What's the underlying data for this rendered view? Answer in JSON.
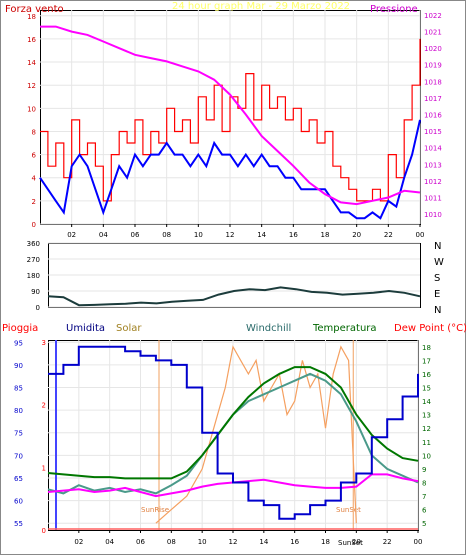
{
  "chart_data": [
    {
      "type": "line",
      "header": {
        "left_label": "Forza vento",
        "center_label": "24 hour graph Mar - 29 Marzo 2022",
        "right_label": "Pressione"
      },
      "x_ticks": [
        "02",
        "04",
        "06",
        "08",
        "10",
        "12",
        "14",
        "16",
        "18",
        "20",
        "22",
        "00"
      ],
      "y_left_ticks": [
        "0",
        "2",
        "4",
        "6",
        "8",
        "10",
        "12",
        "14",
        "16",
        "18"
      ],
      "y_right_ticks": [
        "1010",
        "1011",
        "1012",
        "1013",
        "1014",
        "1015",
        "1016",
        "1017",
        "1018",
        "1019",
        "1020",
        "1021",
        "1022"
      ],
      "ylim_left": [
        0,
        18.5
      ],
      "ylim_right": [
        1009.4,
        1022.3
      ],
      "series": [
        {
          "name": "Forza vento",
          "color": "#ff0000",
          "axis": "left",
          "x": [
            0,
            0.5,
            1,
            1.5,
            2,
            2.5,
            3,
            3.5,
            4,
            4.5,
            5,
            5.5,
            6,
            6.5,
            7,
            7.5,
            8,
            8.5,
            9,
            9.5,
            10,
            10.5,
            11,
            11.5,
            12,
            12.5,
            13,
            13.5,
            14,
            14.5,
            15,
            15.5,
            16,
            16.5,
            17,
            17.5,
            18,
            18.5,
            19,
            19.5,
            20,
            20.5,
            21,
            21.5,
            22,
            22.5,
            23,
            23.5,
            24
          ],
          "values": [
            8,
            5,
            7,
            4,
            9,
            6,
            7,
            5,
            2,
            6,
            8,
            7,
            9,
            6,
            8,
            7,
            10,
            8,
            9,
            7,
            11,
            9,
            12,
            8,
            11,
            10,
            13,
            9,
            12,
            10,
            11,
            9,
            10,
            8,
            9,
            7,
            8,
            5,
            4,
            3,
            2,
            2,
            3,
            2,
            6,
            4,
            9,
            12,
            16
          ]
        },
        {
          "color": "#0000ff",
          "axis": "left",
          "x": [
            0,
            0.5,
            1,
            1.5,
            2,
            2.5,
            3,
            3.5,
            4,
            4.5,
            5,
            5.5,
            6,
            6.5,
            7,
            7.5,
            8,
            8.5,
            9,
            9.5,
            10,
            10.5,
            11,
            11.5,
            12,
            12.5,
            13,
            13.5,
            14,
            14.5,
            15,
            15.5,
            16,
            16.5,
            17,
            17.5,
            18,
            18.5,
            19,
            19.5,
            20,
            20.5,
            21,
            21.5,
            22,
            22.5,
            23,
            23.5,
            24
          ],
          "values": [
            4,
            3,
            2,
            1,
            5,
            6,
            5,
            3,
            1,
            3,
            5,
            4,
            6,
            5,
            6,
            6,
            7,
            6,
            6,
            5,
            6,
            5,
            7,
            6,
            6,
            5,
            6,
            5,
            6,
            5,
            5,
            4,
            4,
            3,
            3,
            3,
            3,
            2,
            1,
            1,
            0.5,
            0.5,
            1,
            0.5,
            2,
            1.5,
            4,
            6,
            9
          ]
        },
        {
          "name": "Pressione",
          "color": "#ff00ff",
          "axis": "right",
          "x": [
            0,
            1,
            2,
            3,
            4,
            5,
            6,
            7,
            8,
            9,
            10,
            11,
            12,
            13,
            14,
            15,
            16,
            17,
            18,
            19,
            20,
            21,
            22,
            23,
            24
          ],
          "values": [
            1021.3,
            1021.3,
            1021.0,
            1020.8,
            1020.4,
            1020.0,
            1019.6,
            1019.4,
            1019.2,
            1018.9,
            1018.6,
            1018.1,
            1017.2,
            1016.0,
            1014.7,
            1013.8,
            1012.9,
            1011.9,
            1011.2,
            1010.7,
            1010.6,
            1010.8,
            1011.0,
            1011.4,
            1011.3
          ]
        }
      ]
    },
    {
      "type": "line",
      "y_ticks": [
        "360",
        "270",
        "180",
        "90",
        "0"
      ],
      "right_labels": [
        "N",
        "W",
        "S",
        "E",
        "N"
      ],
      "ylim": [
        0,
        360
      ],
      "series": [
        {
          "color": "#1c3c3c",
          "x": [
            0,
            1,
            2,
            3,
            4,
            5,
            6,
            7,
            8,
            9,
            10,
            11,
            12,
            13,
            14,
            15,
            16,
            17,
            18,
            19,
            20,
            21,
            22,
            23,
            24
          ],
          "values": [
            60,
            55,
            10,
            12,
            15,
            18,
            25,
            20,
            30,
            35,
            40,
            70,
            90,
            100,
            95,
            110,
            100,
            85,
            80,
            70,
            75,
            80,
            90,
            80,
            60
          ]
        }
      ]
    },
    {
      "type": "line",
      "legend": [
        "Pioggia",
        "Umidita",
        "Solar",
        "Windchill",
        "Temperatura",
        "Dew Point (°C)"
      ],
      "x_ticks": [
        "02",
        "04",
        "06",
        "08",
        "10",
        "12",
        "14",
        "16",
        "18",
        "20",
        "22",
        "00"
      ],
      "y_left_ticks": [
        "55",
        "60",
        "65",
        "70",
        "75",
        "80",
        "85",
        "90",
        "95"
      ],
      "y_rain_ticks": [
        "0",
        "1",
        "2",
        "3"
      ],
      "y_right_ticks": [
        "5",
        "6",
        "7",
        "8",
        "9",
        "10",
        "11",
        "12",
        "13",
        "14",
        "15",
        "16",
        "17",
        "18"
      ],
      "ylim_left": [
        53.5,
        95.5
      ],
      "ylim_right": [
        4.5,
        18.5
      ],
      "annotations": [
        "SunRise",
        "SunSet",
        "SunSet"
      ],
      "series": [
        {
          "name": "Umidita",
          "color": "#0000cc",
          "axis": "left",
          "x": [
            0,
            1,
            2,
            3,
            4,
            5,
            6,
            7,
            8,
            9,
            10,
            11,
            12,
            13,
            14,
            15,
            16,
            17,
            18,
            19,
            20,
            21,
            22,
            23,
            24
          ],
          "values": [
            88,
            90,
            94,
            94,
            94,
            93,
            92,
            91,
            90,
            85,
            75,
            66,
            64,
            60,
            59,
            56,
            57,
            59,
            60,
            64,
            66,
            74,
            78,
            83,
            88
          ]
        },
        {
          "name": "Solar",
          "color": "#f5a060",
          "axis": "right",
          "x": [
            7,
            8,
            9,
            10,
            10.5,
            11,
            11.5,
            12,
            12.5,
            13,
            13.5,
            14,
            14.5,
            15,
            15.5,
            16,
            16.5,
            17,
            17.5,
            18,
            18.5,
            19,
            19.5,
            20
          ],
          "values": [
            5,
            6,
            7,
            9,
            11,
            13,
            15,
            18,
            17,
            16,
            17,
            14,
            15,
            16,
            13,
            14,
            17,
            15,
            16,
            12,
            16,
            18,
            17,
            5
          ]
        },
        {
          "name": "Windchill",
          "color": "#4a9a8a",
          "axis": "right",
          "x": [
            0,
            1,
            2,
            3,
            4,
            5,
            6,
            7,
            8,
            9,
            10,
            11,
            12,
            13,
            14,
            15,
            16,
            17,
            18,
            19,
            20,
            21,
            22,
            23,
            24
          ],
          "values": [
            7.5,
            7.2,
            7.8,
            7.4,
            7.6,
            7.3,
            7.5,
            7.2,
            7.8,
            8.5,
            10,
            11.5,
            13,
            14,
            14.5,
            15,
            15.5,
            16,
            15.5,
            14.5,
            12.5,
            10,
            9,
            8.5,
            8
          ]
        },
        {
          "name": "Temperatura",
          "color": "#007700",
          "axis": "right",
          "x": [
            0,
            1,
            2,
            3,
            4,
            5,
            6,
            7,
            8,
            9,
            10,
            11,
            12,
            13,
            14,
            15,
            16,
            17,
            18,
            19,
            20,
            21,
            22,
            23,
            24
          ],
          "values": [
            8.7,
            8.6,
            8.5,
            8.4,
            8.4,
            8.3,
            8.3,
            8.3,
            8.3,
            8.8,
            10,
            11.5,
            13,
            14.3,
            15.3,
            16,
            16.5,
            16.5,
            16,
            15,
            13,
            11.5,
            10.5,
            9.8,
            9.6
          ]
        },
        {
          "name": "Dew Point (°C)",
          "color": "#ff00ff",
          "axis": "right",
          "x": [
            0,
            1,
            2,
            3,
            4,
            5,
            6,
            7,
            8,
            9,
            10,
            11,
            12,
            13,
            14,
            15,
            16,
            17,
            18,
            19,
            20,
            21,
            22,
            23,
            24
          ],
          "values": [
            7.3,
            7.4,
            7.5,
            7.3,
            7.4,
            7.6,
            7.3,
            7.0,
            7.2,
            7.4,
            7.7,
            7.9,
            8.0,
            8.1,
            8.2,
            8.0,
            7.8,
            7.7,
            7.6,
            7.6,
            7.7,
            8.6,
            8.6,
            8.3,
            8.1
          ]
        }
      ]
    }
  ],
  "header": {
    "left_label": "Forza vento",
    "center_label": "24 hour graph Mar - 29 Marzo 2022",
    "right_label": "Pressione"
  },
  "legend": {
    "pioggia": "Pioggia",
    "umidita": "Umidita",
    "solar": "Solar",
    "windchill": "Windchill",
    "temperatura": "Temperatura",
    "dewpoint": "Dew Point (°C)"
  },
  "annotations": {
    "sunrise": "SunRise",
    "sunset": "SunSet",
    "sunset_axis": "SunSet"
  },
  "colors": {
    "background": "#ffffff",
    "rain": "#ff0000",
    "humidity": "#0000cc",
    "solar": "#f5a060",
    "windchill": "#4a9a8a",
    "temperature": "#007700",
    "dewpoint": "#ff00ff",
    "pressure": "#ff00ff",
    "wind_gust": "#ff0000",
    "wind_avg": "#0000ff",
    "wind_dir": "#1c3c3c"
  }
}
